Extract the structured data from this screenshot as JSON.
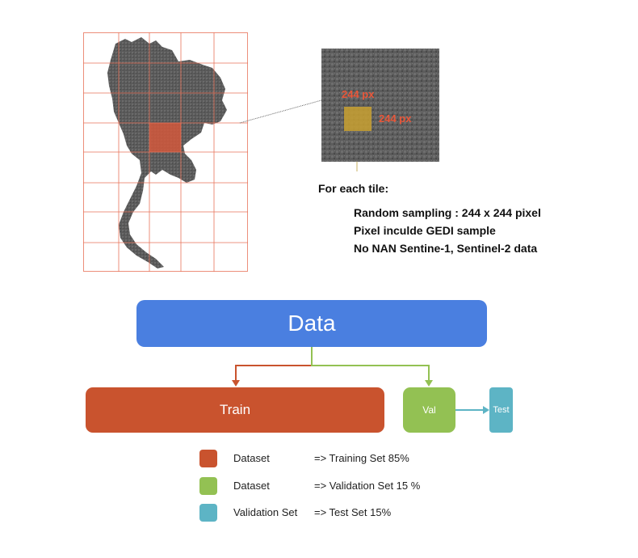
{
  "zoom": {
    "size_label_top": "244 px",
    "size_label_right": "244 px"
  },
  "caption": {
    "heading": "For each tile:",
    "bullets": [
      "Random sampling : 244 x 244 pixel",
      "Pixel inculde GEDI sample",
      "No NAN Sentine-1, Sentinel-2 data"
    ]
  },
  "flow": {
    "data": "Data",
    "train": "Train",
    "val": "Val",
    "test": "Test"
  },
  "legend": [
    {
      "label": "Dataset",
      "desc": "=> Training Set 85%",
      "color": "#c9532e"
    },
    {
      "label": "Dataset",
      "desc": "=> Validation Set 15 %",
      "color": "#93c153"
    },
    {
      "label": "Validation Set",
      "desc": "=> Test Set 15%",
      "color": "#5db4c5"
    }
  ],
  "colors": {
    "grid": "#e8735a",
    "highlight_tile": "#d9573a",
    "sample_box": "#c8a030",
    "data": "#4a7fe0",
    "train": "#c9532e",
    "val": "#93c153",
    "test": "#5db4c5"
  }
}
